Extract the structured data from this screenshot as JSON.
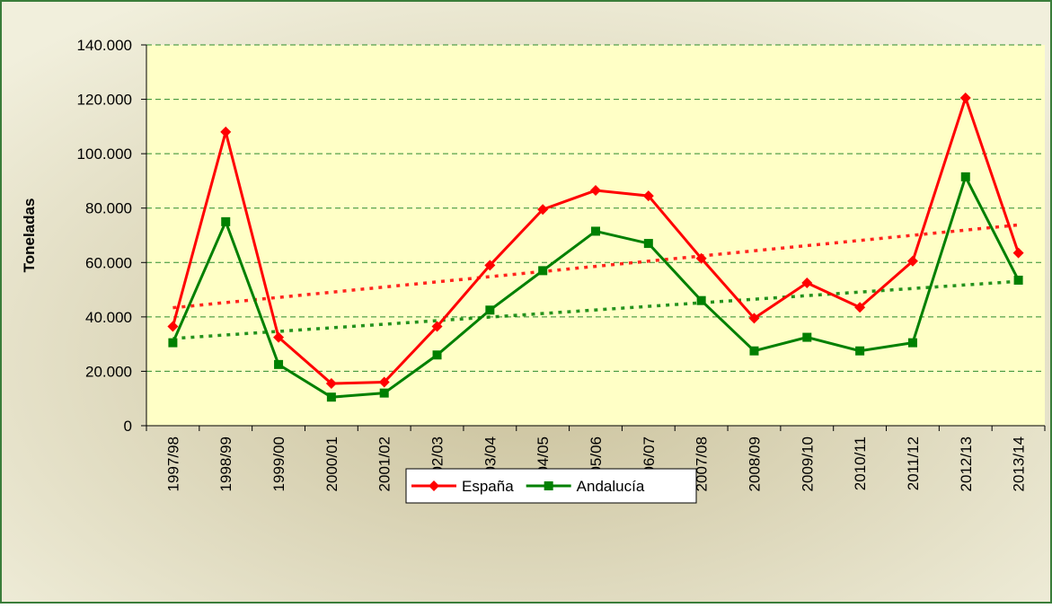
{
  "chart_data": {
    "type": "line",
    "y_label": "Toneladas",
    "categories": [
      "1997/98",
      "1998/99",
      "1999/00",
      "2000/01",
      "2001/02",
      "2002/03",
      "2003/04",
      "2004/05",
      "2005/06",
      "2006/07",
      "2007/08",
      "2008/09",
      "2009/10",
      "2010/11",
      "2011/12",
      "2012/13",
      "2013/14"
    ],
    "series": [
      {
        "name": "España",
        "color": "#ff0000",
        "marker": "diamond",
        "values": [
          36500,
          108000,
          32500,
          15500,
          16000,
          36500,
          59000,
          79500,
          86500,
          84500,
          61500,
          39500,
          52500,
          43500,
          60500,
          120500,
          63500
        ]
      },
      {
        "name": "Andalucía",
        "color": "#008000",
        "marker": "square",
        "values": [
          30500,
          75000,
          22500,
          10500,
          12000,
          26000,
          42500,
          57000,
          71500,
          67000,
          46000,
          27500,
          32500,
          27500,
          30500,
          91500,
          53500
        ]
      }
    ],
    "ylim": [
      0,
      140000
    ],
    "yticks": [
      0,
      {
        "value": 20000,
        "label": "20.000"
      },
      {
        "value": 40000,
        "label": "40.000"
      },
      {
        "value": 60000,
        "label": "60.000"
      },
      {
        "value": 80000,
        "label": "80.000"
      },
      {
        "value": 100000,
        "label": "100.000"
      },
      {
        "value": 120000,
        "label": "120.000"
      },
      {
        "value": 140000,
        "label": "140.000"
      }
    ],
    "grid": true,
    "trendline": true,
    "legend": "bottom"
  }
}
